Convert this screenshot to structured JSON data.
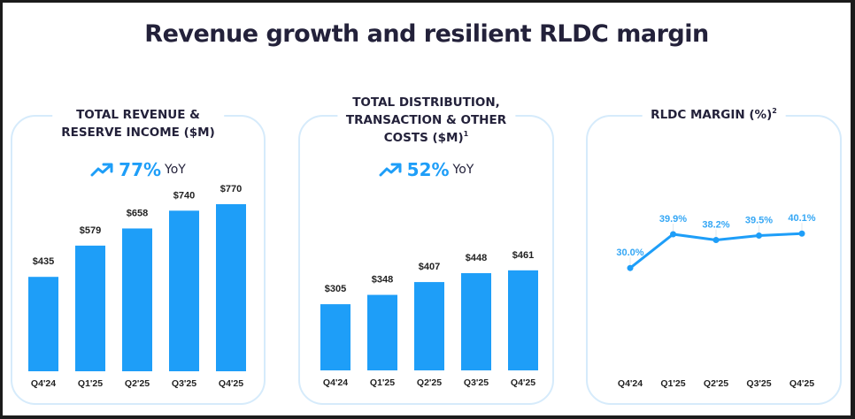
{
  "slide": {
    "title": "Revenue growth and resilient RLDC margin"
  },
  "colors": {
    "bar": "#1e9ef8",
    "line": "#1e9ef8",
    "line_label": "#35a7f5",
    "title_text": "#23213a",
    "panel_border": "#d6ebfb"
  },
  "panels": [
    {
      "title_lines": [
        "TOTAL REVENUE &",
        "RESERVE INCOME ($M)"
      ],
      "footnote": "",
      "yoy_value": "77%",
      "yoy_label": "YoY",
      "yoy_icon": "trending-up-icon"
    },
    {
      "title_lines": [
        "TOTAL DISTRIBUTION,",
        "TRANSACTION & OTHER",
        "COSTS ($M)"
      ],
      "footnote": "1",
      "yoy_value": "52%",
      "yoy_label": "YoY",
      "yoy_icon": "trending-up-icon"
    },
    {
      "title_lines": [
        "RLDC MARGIN (%)"
      ],
      "footnote": "2"
    }
  ],
  "chart_data": [
    {
      "type": "bar",
      "title": "TOTAL REVENUE & RESERVE INCOME ($M)",
      "categories": [
        "Q4'24",
        "Q1'25",
        "Q2'25",
        "Q3'25",
        "Q4'25"
      ],
      "values": [
        435,
        579,
        658,
        740,
        770
      ],
      "data_labels": [
        "$435",
        "$579",
        "$658",
        "$740",
        "$770"
      ],
      "annotation": "77% YoY",
      "xlabel": "",
      "ylabel": "",
      "ylim": [
        0,
        800
      ],
      "grid": false
    },
    {
      "type": "bar",
      "title": "TOTAL DISTRIBUTION, TRANSACTION & OTHER COSTS ($M)",
      "categories": [
        "Q4'24",
        "Q1'25",
        "Q2'25",
        "Q3'25",
        "Q4'25"
      ],
      "values": [
        305,
        348,
        407,
        448,
        461
      ],
      "data_labels": [
        "$305",
        "$348",
        "$407",
        "$448",
        "$461"
      ],
      "annotation": "52% YoY",
      "xlabel": "",
      "ylabel": "",
      "ylim": [
        0,
        800
      ],
      "grid": false
    },
    {
      "type": "line",
      "title": "RLDC MARGIN (%)",
      "categories": [
        "Q4'24",
        "Q1'25",
        "Q2'25",
        "Q3'25",
        "Q4'25"
      ],
      "values": [
        30.0,
        39.9,
        38.2,
        39.5,
        40.1
      ],
      "data_labels": [
        "30.0%",
        "39.9%",
        "38.2%",
        "39.5%",
        "40.1%"
      ],
      "xlabel": "",
      "ylabel": "",
      "ylim": [
        0,
        45
      ],
      "grid": false
    }
  ]
}
